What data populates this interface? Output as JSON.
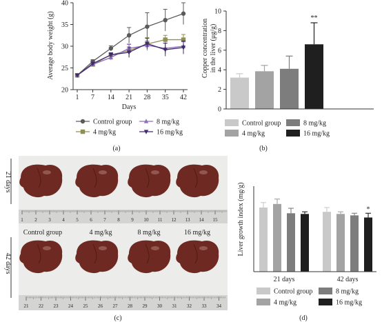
{
  "panel_labels": {
    "a": "(a)",
    "b": "(b)",
    "c": "(c)",
    "d": "(d)"
  },
  "colors": {
    "control": "#5a5a5a",
    "mg4": "#8f8f55",
    "mg8": "#8e6cc0",
    "mg16": "#3f2a6b",
    "bar_control": "#c9c9c9",
    "bar_mg4": "#a3a3a3",
    "bar_mg8": "#7d7d7d",
    "bar_mg16": "#1f1f1f",
    "liver": "#6e2a22",
    "ruler": "#d8d8d6"
  },
  "chart_data": [
    {
      "id": "a",
      "type": "line",
      "xlabel": "Days",
      "ylabel": "Average body weight (g)",
      "x": [
        1,
        7,
        14,
        21,
        28,
        35,
        42
      ],
      "ylim": [
        20,
        40
      ],
      "yticks": [
        20,
        25,
        30,
        35,
        40
      ],
      "legend_position": "bottom",
      "series": [
        {
          "name": "Control group",
          "key": "control",
          "marker": "circle",
          "values": [
            23.3,
            26.5,
            29.5,
            32.5,
            34.5,
            36.0,
            37.5
          ],
          "errors": [
            0,
            0.4,
            0.6,
            1.8,
            3.2,
            2.5,
            2.5
          ]
        },
        {
          "name": "4 mg/kg",
          "key": "mg4",
          "marker": "square",
          "values": [
            23.3,
            25.8,
            28.0,
            29.0,
            30.5,
            31.5,
            31.5
          ],
          "errors": [
            0,
            0.3,
            0.5,
            1.5,
            1.5,
            1.0,
            1.2
          ]
        },
        {
          "name": "8 mg/kg",
          "key": "mg8",
          "marker": "triangle",
          "values": [
            23.3,
            25.8,
            27.4,
            29.5,
            30.2,
            29.5,
            30.0
          ],
          "errors": [
            0,
            0.3,
            0.6,
            0.9,
            1.0,
            1.2,
            1.0
          ]
        },
        {
          "name": "16 mg/kg",
          "key": "mg16",
          "marker": "triangle-down",
          "values": [
            23.3,
            26.0,
            28.0,
            28.6,
            30.6,
            29.2,
            29.7
          ],
          "errors": [
            0,
            0.3,
            0.5,
            1.2,
            1.2,
            1.5,
            1.5
          ]
        }
      ]
    },
    {
      "id": "b",
      "type": "bar",
      "ylabel": "Copper concentration in the liver (μg/g)",
      "ylim": [
        0,
        10
      ],
      "yticks": [
        0,
        2,
        4,
        6,
        8,
        10
      ],
      "legend_position": "bottom",
      "series": [
        {
          "name": "Control group",
          "key": "bar_control",
          "value": 3.2,
          "error": 0.4
        },
        {
          "name": "4 mg/kg",
          "key": "bar_mg4",
          "value": 3.85,
          "error": 0.6
        },
        {
          "name": "8 mg/kg",
          "key": "bar_mg8",
          "value": 4.1,
          "error": 1.3
        },
        {
          "name": "16 mg/kg",
          "key": "bar_mg16",
          "value": 6.6,
          "error": 2.2,
          "annotation": "**"
        }
      ]
    },
    {
      "id": "d",
      "type": "bar",
      "ylabel": "Liver growth index (mg/g)",
      "ylim": [
        0,
        60
      ],
      "categories": [
        "21 days",
        "42 days"
      ],
      "legend_position": "bottom",
      "series": [
        {
          "name": "Control group",
          "key": "bar_control",
          "values": [
            45,
            42
          ],
          "errors": [
            3.5,
            3
          ]
        },
        {
          "name": "4 mg/kg",
          "key": "bar_mg4",
          "values": [
            47.5,
            40.5
          ],
          "errors": [
            3.5,
            1.5
          ]
        },
        {
          "name": "8 mg/kg",
          "key": "bar_mg8",
          "values": [
            41,
            39.5
          ],
          "errors": [
            3.5,
            1.5
          ]
        },
        {
          "name": "16 mg/kg",
          "key": "bar_mg16",
          "values": [
            40.5,
            38
          ],
          "errors": [
            1.5,
            3
          ],
          "annotations": [
            "",
            "*"
          ]
        }
      ]
    }
  ],
  "photo": {
    "row_labels": [
      "21 days",
      "42 days"
    ],
    "group_labels": [
      "Control group",
      "4 mg/kg",
      "8 mg/kg",
      "16 mg/kg"
    ],
    "ruler_top": [
      "1",
      "2",
      "3",
      "4",
      "5",
      "6",
      "7",
      "8",
      "9",
      "10",
      "11",
      "12",
      "13",
      "14",
      "15"
    ],
    "ruler_bottom": [
      "21",
      "22",
      "23",
      "24",
      "25",
      "26",
      "27",
      "28",
      "29",
      "30",
      "31",
      "32",
      "33",
      "34"
    ]
  }
}
